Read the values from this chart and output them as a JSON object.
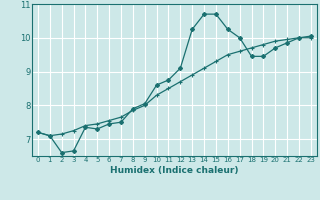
{
  "xlabel": "Humidex (Indice chaleur)",
  "ylabel": "",
  "background_color": "#cde8e8",
  "grid_color": "#ffffff",
  "line_color": "#1a7070",
  "xlim": [
    -0.5,
    23.5
  ],
  "ylim": [
    6.5,
    11.0
  ],
  "yticks": [
    7,
    8,
    9,
    10,
    11
  ],
  "xticks": [
    0,
    1,
    2,
    3,
    4,
    5,
    6,
    7,
    8,
    9,
    10,
    11,
    12,
    13,
    14,
    15,
    16,
    17,
    18,
    19,
    20,
    21,
    22,
    23
  ],
  "line1_x": [
    0,
    1,
    2,
    3,
    4,
    5,
    6,
    7,
    8,
    9,
    10,
    11,
    12,
    13,
    14,
    15,
    16,
    17,
    18,
    19,
    20,
    21,
    22,
    23
  ],
  "line1_y": [
    7.2,
    7.1,
    6.6,
    6.65,
    7.35,
    7.3,
    7.45,
    7.5,
    7.9,
    8.05,
    8.6,
    8.75,
    9.1,
    10.25,
    10.7,
    10.7,
    10.25,
    10.0,
    9.45,
    9.45,
    9.7,
    9.85,
    10.0,
    10.05
  ],
  "line2_x": [
    0,
    1,
    2,
    3,
    4,
    5,
    6,
    7,
    8,
    9,
    10,
    11,
    12,
    13,
    14,
    15,
    16,
    17,
    18,
    19,
    20,
    21,
    22,
    23
  ],
  "line2_y": [
    7.2,
    7.1,
    7.15,
    7.25,
    7.4,
    7.45,
    7.55,
    7.65,
    7.85,
    8.0,
    8.3,
    8.5,
    8.7,
    8.9,
    9.1,
    9.3,
    9.5,
    9.6,
    9.7,
    9.8,
    9.9,
    9.95,
    10.0,
    10.0
  ]
}
